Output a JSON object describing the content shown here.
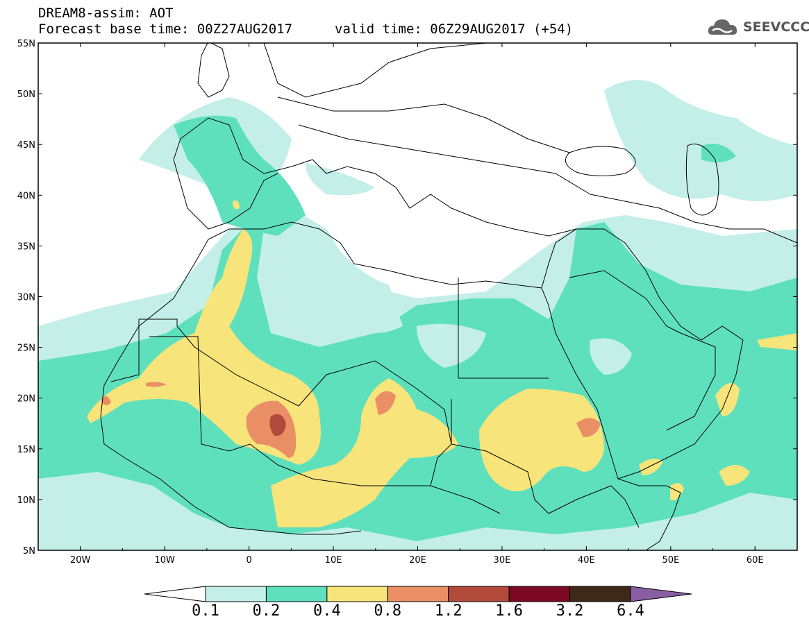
{
  "header": {
    "title": "DREAM8-assim: AOT",
    "base_time": "Forecast base time: 00Z27AUG2017",
    "valid_time": "valid time: 06Z29AUG2017 (+54)"
  },
  "logo": {
    "text": "SEEVCCC"
  },
  "axes": {
    "lat_labels": [
      "55N",
      "50N",
      "45N",
      "40N",
      "35N",
      "30N",
      "25N",
      "20N",
      "15N",
      "10N",
      "5N"
    ],
    "lon_labels": [
      "20W",
      "10W",
      "0",
      "10E",
      "20E",
      "30E",
      "40E",
      "50E",
      "60E"
    ]
  },
  "colorbar": {
    "labels": [
      "0.1",
      "0.2",
      "0.4",
      "0.8",
      "1.2",
      "1.6",
      "3.2",
      "6.4"
    ],
    "colors": [
      "#ffffff",
      "#c4efe9",
      "#5ee0bd",
      "#f7e47b",
      "#ea8f65",
      "#b24a3c",
      "#7c0923",
      "#3e2817",
      "#8a5ea4"
    ]
  }
}
